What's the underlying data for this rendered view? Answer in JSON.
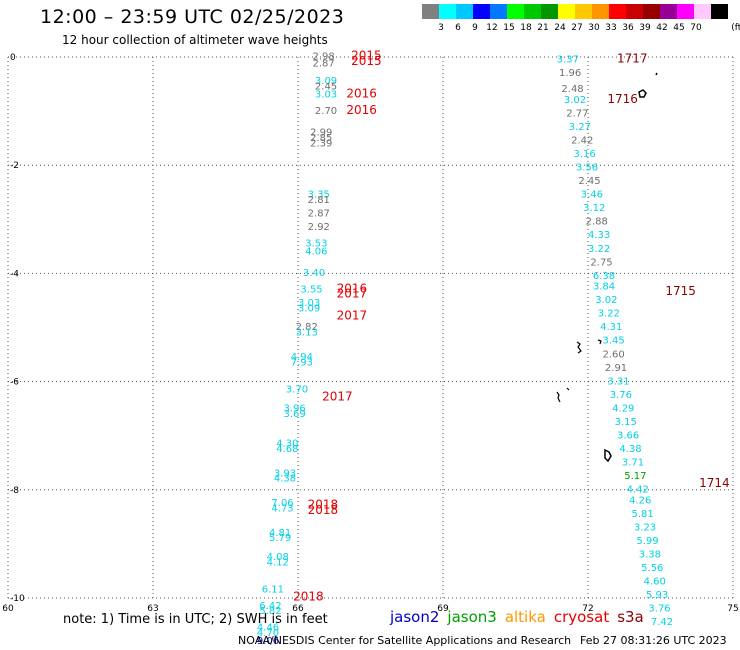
{
  "title": "12:00 – 23:59 UTC 02/25/2023",
  "subtitle": "12 hour collection of altimeter wave heights",
  "colorbar": {
    "unit": "(ft)",
    "colors": [
      "#808080",
      "#00ffff",
      "#00c8ff",
      "#0000ff",
      "#0078ff",
      "#00ff00",
      "#00c800",
      "#009600",
      "#ffff00",
      "#ffc800",
      "#ff9600",
      "#ff0000",
      "#c80000",
      "#960000",
      "#960096",
      "#ff00ff",
      "#ffc8ff",
      "#000000"
    ],
    "ticks": [
      "3",
      "6",
      "9",
      "12",
      "15",
      "18",
      "21",
      "24",
      "27",
      "30",
      "33",
      "36",
      "39",
      "42",
      "45",
      "70"
    ]
  },
  "chart_data": {
    "type": "scatter",
    "xlim": [
      60,
      75
    ],
    "ylim": [
      -10,
      0
    ],
    "x_ticks": [
      "60",
      "63",
      "66",
      "69",
      "72",
      "75"
    ],
    "y_ticks": [
      "0",
      "-2",
      "-4",
      "-6",
      "-8",
      "-10"
    ],
    "grid": true,
    "colors": {
      "gray": "#6e6e6e",
      "cyan": "#00d2e6",
      "blue": "#0000cd",
      "red": "#e60000",
      "darkred": "#8b0000",
      "green": "#00a000"
    },
    "left_track": [
      {
        "x": 66.3,
        "y": -0.05,
        "v": "2.98",
        "c": "gray"
      },
      {
        "x": 66.3,
        "y": -0.18,
        "v": "2.87",
        "c": "gray"
      },
      {
        "x": 66.35,
        "y": -0.5,
        "v": "3.09",
        "c": "cyan"
      },
      {
        "x": 66.35,
        "y": -0.6,
        "v": "2.45",
        "c": "gray"
      },
      {
        "x": 66.35,
        "y": -0.75,
        "v": "3.03",
        "c": "cyan"
      },
      {
        "x": 66.35,
        "y": -1.05,
        "v": "2.70",
        "c": "gray"
      },
      {
        "x": 66.25,
        "y": -1.45,
        "v": "2.99",
        "c": "gray"
      },
      {
        "x": 66.25,
        "y": -1.55,
        "v": "2.85",
        "c": "gray"
      },
      {
        "x": 66.25,
        "y": -1.65,
        "v": "2.39",
        "c": "gray"
      },
      {
        "x": 66.2,
        "y": -2.6,
        "v": "3.35",
        "c": "cyan"
      },
      {
        "x": 66.2,
        "y": -2.7,
        "v": "2.81",
        "c": "gray"
      },
      {
        "x": 66.2,
        "y": -2.95,
        "v": "2.87",
        "c": "gray"
      },
      {
        "x": 66.2,
        "y": -3.2,
        "v": "2.92",
        "c": "gray"
      },
      {
        "x": 66.15,
        "y": -3.5,
        "v": "3.53",
        "c": "cyan"
      },
      {
        "x": 66.15,
        "y": -3.65,
        "v": "4.06",
        "c": "cyan"
      },
      {
        "x": 66.1,
        "y": -4.05,
        "v": "3.40",
        "c": "cyan"
      },
      {
        "x": 66.05,
        "y": -4.35,
        "v": "3.55",
        "c": "cyan"
      },
      {
        "x": 66.0,
        "y": -4.6,
        "v": "3.03",
        "c": "cyan"
      },
      {
        "x": 66.0,
        "y": -4.7,
        "v": "3.09",
        "c": "cyan"
      },
      {
        "x": 65.95,
        "y": -5.05,
        "v": "2.82",
        "c": "gray"
      },
      {
        "x": 65.95,
        "y": -5.15,
        "v": "3.13",
        "c": "cyan"
      },
      {
        "x": 65.85,
        "y": -5.6,
        "v": "4.94",
        "c": "cyan"
      },
      {
        "x": 65.85,
        "y": -5.7,
        "v": "7.93",
        "c": "cyan"
      },
      {
        "x": 65.75,
        "y": -6.2,
        "v": "3.70",
        "c": "cyan"
      },
      {
        "x": 65.7,
        "y": -6.55,
        "v": "3.96",
        "c": "cyan"
      },
      {
        "x": 65.7,
        "y": -6.65,
        "v": "3.69",
        "c": "cyan"
      },
      {
        "x": 65.55,
        "y": -7.2,
        "v": "4.30",
        "c": "cyan"
      },
      {
        "x": 65.55,
        "y": -7.3,
        "v": "4.68",
        "c": "cyan"
      },
      {
        "x": 65.5,
        "y": -7.75,
        "v": "3.93",
        "c": "cyan"
      },
      {
        "x": 65.5,
        "y": -7.85,
        "v": "4.38",
        "c": "cyan"
      },
      {
        "x": 65.45,
        "y": -8.3,
        "v": "7.06",
        "c": "cyan"
      },
      {
        "x": 65.45,
        "y": -8.4,
        "v": "4.73",
        "c": "cyan"
      },
      {
        "x": 65.4,
        "y": -8.85,
        "v": "4.81",
        "c": "cyan"
      },
      {
        "x": 65.4,
        "y": -8.95,
        "v": "5.79",
        "c": "cyan"
      },
      {
        "x": 65.35,
        "y": -9.3,
        "v": "4.08",
        "c": "cyan"
      },
      {
        "x": 65.35,
        "y": -9.4,
        "v": "4.12",
        "c": "cyan"
      },
      {
        "x": 65.25,
        "y": -9.9,
        "v": "6.11",
        "c": "cyan"
      },
      {
        "x": 65.2,
        "y": -10.2,
        "v": "6.42",
        "c": "cyan"
      },
      {
        "x": 65.2,
        "y": -10.3,
        "v": "5.82",
        "c": "cyan"
      },
      {
        "x": 65.15,
        "y": -10.6,
        "v": "4.46",
        "c": "cyan"
      },
      {
        "x": 65.15,
        "y": -10.7,
        "v": "4.70",
        "c": "cyan"
      },
      {
        "x": 65.15,
        "y": -10.85,
        "v": "9.06",
        "c": "blue"
      }
    ],
    "right_track": [
      {
        "x": 71.35,
        "y": -0.1,
        "v": "3.37",
        "c": "cyan"
      },
      {
        "x": 71.4,
        "y": -0.35,
        "v": "1.96",
        "c": "gray"
      },
      {
        "x": 71.45,
        "y": -0.65,
        "v": "2.48",
        "c": "gray"
      },
      {
        "x": 71.5,
        "y": -0.85,
        "v": "3.02",
        "c": "cyan"
      },
      {
        "x": 71.55,
        "y": -1.1,
        "v": "2.77",
        "c": "gray"
      },
      {
        "x": 71.6,
        "y": -1.35,
        "v": "3.27",
        "c": "cyan"
      },
      {
        "x": 71.65,
        "y": -1.6,
        "v": "2.42",
        "c": "gray"
      },
      {
        "x": 71.7,
        "y": -1.85,
        "v": "3.16",
        "c": "cyan"
      },
      {
        "x": 71.75,
        "y": -2.1,
        "v": "3.56",
        "c": "cyan"
      },
      {
        "x": 71.8,
        "y": -2.35,
        "v": "2.45",
        "c": "gray"
      },
      {
        "x": 71.85,
        "y": -2.6,
        "v": "3.46",
        "c": "cyan"
      },
      {
        "x": 71.9,
        "y": -2.85,
        "v": "3.12",
        "c": "cyan"
      },
      {
        "x": 71.95,
        "y": -3.1,
        "v": "2.88",
        "c": "gray"
      },
      {
        "x": 72.0,
        "y": -3.35,
        "v": "4.33",
        "c": "cyan"
      },
      {
        "x": 72.0,
        "y": -3.6,
        "v": "3.22",
        "c": "cyan"
      },
      {
        "x": 72.05,
        "y": -3.85,
        "v": "2.75",
        "c": "gray"
      },
      {
        "x": 72.1,
        "y": -4.1,
        "v": "6.38",
        "c": "cyan"
      },
      {
        "x": 72.1,
        "y": -4.3,
        "v": "3.84",
        "c": "cyan"
      },
      {
        "x": 72.15,
        "y": -4.55,
        "v": "3.02",
        "c": "cyan"
      },
      {
        "x": 72.2,
        "y": -4.8,
        "v": "3.22",
        "c": "cyan"
      },
      {
        "x": 72.25,
        "y": -5.05,
        "v": "4.31",
        "c": "cyan"
      },
      {
        "x": 72.3,
        "y": -5.3,
        "v": "3.45",
        "c": "cyan"
      },
      {
        "x": 72.3,
        "y": -5.55,
        "v": "2.60",
        "c": "gray"
      },
      {
        "x": 72.35,
        "y": -5.8,
        "v": "2.91",
        "c": "gray"
      },
      {
        "x": 72.4,
        "y": -6.05,
        "v": "3.31",
        "c": "cyan"
      },
      {
        "x": 72.45,
        "y": -6.3,
        "v": "3.76",
        "c": "cyan"
      },
      {
        "x": 72.5,
        "y": -6.55,
        "v": "4.29",
        "c": "cyan"
      },
      {
        "x": 72.55,
        "y": -6.8,
        "v": "3.15",
        "c": "cyan"
      },
      {
        "x": 72.6,
        "y": -7.05,
        "v": "3.66",
        "c": "cyan"
      },
      {
        "x": 72.65,
        "y": -7.3,
        "v": "4.38",
        "c": "cyan"
      },
      {
        "x": 72.7,
        "y": -7.55,
        "v": "3.71",
        "c": "cyan"
      },
      {
        "x": 72.75,
        "y": -7.8,
        "v": "5.17",
        "c": "green"
      },
      {
        "x": 72.8,
        "y": -8.05,
        "v": "4.42",
        "c": "cyan"
      },
      {
        "x": 72.85,
        "y": -8.25,
        "v": "4.26",
        "c": "cyan"
      },
      {
        "x": 72.9,
        "y": -8.5,
        "v": "5.81",
        "c": "cyan"
      },
      {
        "x": 72.95,
        "y": -8.75,
        "v": "3.23",
        "c": "cyan"
      },
      {
        "x": 73.0,
        "y": -9.0,
        "v": "5.99",
        "c": "cyan"
      },
      {
        "x": 73.05,
        "y": -9.25,
        "v": "3.38",
        "c": "cyan"
      },
      {
        "x": 73.1,
        "y": -9.5,
        "v": "5.56",
        "c": "cyan"
      },
      {
        "x": 73.15,
        "y": -9.75,
        "v": "4.60",
        "c": "cyan"
      },
      {
        "x": 73.2,
        "y": -10.0,
        "v": "5.93",
        "c": "cyan"
      },
      {
        "x": 73.25,
        "y": -10.25,
        "v": "3.76",
        "c": "cyan"
      },
      {
        "x": 73.3,
        "y": -10.5,
        "v": "7.42",
        "c": "cyan"
      }
    ],
    "time_labels": [
      {
        "x": 67.1,
        "y": -0.05,
        "v": "2015",
        "c": "red"
      },
      {
        "x": 67.1,
        "y": -0.15,
        "v": "2015",
        "c": "red"
      },
      {
        "x": 67.0,
        "y": -0.75,
        "v": "2016",
        "c": "red"
      },
      {
        "x": 67.0,
        "y": -1.05,
        "v": "2016",
        "c": "red"
      },
      {
        "x": 66.8,
        "y": -4.35,
        "v": "2016",
        "c": "red"
      },
      {
        "x": 66.8,
        "y": -4.45,
        "v": "2017",
        "c": "red"
      },
      {
        "x": 66.8,
        "y": -4.85,
        "v": "2017",
        "c": "red"
      },
      {
        "x": 66.5,
        "y": -6.35,
        "v": "2017",
        "c": "red"
      },
      {
        "x": 66.2,
        "y": -8.35,
        "v": "2018",
        "c": "red"
      },
      {
        "x": 66.2,
        "y": -8.45,
        "v": "2018",
        "c": "red"
      },
      {
        "x": 65.9,
        "y": -10.05,
        "v": "2018",
        "c": "red"
      },
      {
        "x": 72.6,
        "y": -0.1,
        "v": "1717",
        "c": "darkred"
      },
      {
        "x": 72.4,
        "y": -0.85,
        "v": "1716",
        "c": "darkred"
      },
      {
        "x": 73.6,
        "y": -4.4,
        "v": "1715",
        "c": "darkred"
      },
      {
        "x": 74.3,
        "y": -7.95,
        "v": "1714",
        "c": "darkred"
      }
    ]
  },
  "note": "note: 1) Time is in UTC; 2) SWH is in feet",
  "legend": [
    {
      "name": "jason2",
      "color": "#0000cd"
    },
    {
      "name": "jason3",
      "color": "#00a000"
    },
    {
      "name": "altika",
      "color": "#ff9600"
    },
    {
      "name": "cryosat",
      "color": "#e60000"
    },
    {
      "name": "s3a",
      "color": "#8b0000"
    }
  ],
  "credit": "NOAA/NESDIS Center for Satellite Applications and Research",
  "stamp": "Feb 27 08:31:26 UTC 2023"
}
